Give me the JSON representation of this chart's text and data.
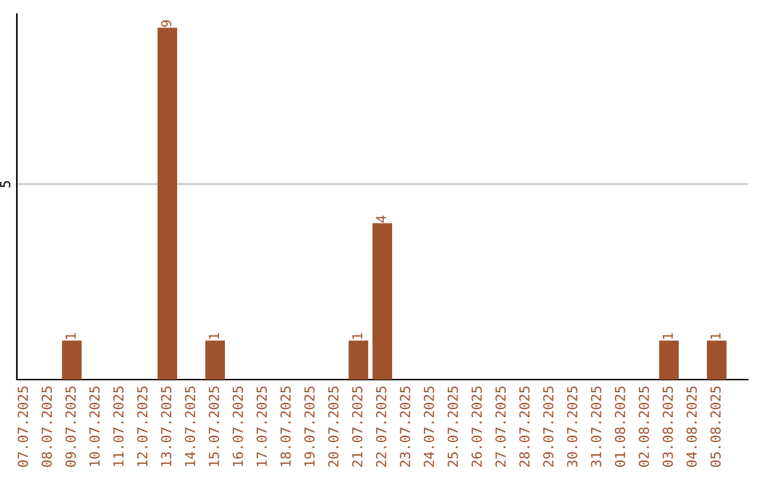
{
  "chart_data": {
    "type": "bar",
    "categories": [
      "07.07.2025",
      "08.07.2025",
      "09.07.2025",
      "10.07.2025",
      "11.07.2025",
      "12.07.2025",
      "13.07.2025",
      "14.07.2025",
      "15.07.2025",
      "16.07.2025",
      "17.07.2025",
      "18.07.2025",
      "19.07.2025",
      "20.07.2025",
      "21.07.2025",
      "22.07.2025",
      "23.07.2025",
      "24.07.2025",
      "25.07.2025",
      "26.07.2025",
      "27.07.2025",
      "28.07.2025",
      "29.07.2025",
      "30.07.2025",
      "31.07.2025",
      "01.08.2025",
      "02.08.2025",
      "03.08.2025",
      "04.08.2025",
      "05.08.2025"
    ],
    "values": [
      0,
      0,
      1,
      0,
      0,
      0,
      9,
      0,
      1,
      0,
      0,
      0,
      0,
      0,
      1,
      4,
      0,
      0,
      0,
      0,
      0,
      0,
      0,
      0,
      0,
      0,
      0,
      1,
      0,
      1
    ],
    "color": "#a0522d",
    "ylim": [
      0,
      9.35
    ],
    "yticks": [
      5
    ],
    "grid": "y",
    "value_labels": [
      null,
      null,
      "1",
      null,
      null,
      null,
      "9",
      null,
      "1",
      null,
      null,
      null,
      null,
      null,
      "1",
      "4",
      null,
      null,
      null,
      null,
      null,
      null,
      null,
      null,
      null,
      null,
      null,
      "1",
      null,
      "1"
    ]
  }
}
